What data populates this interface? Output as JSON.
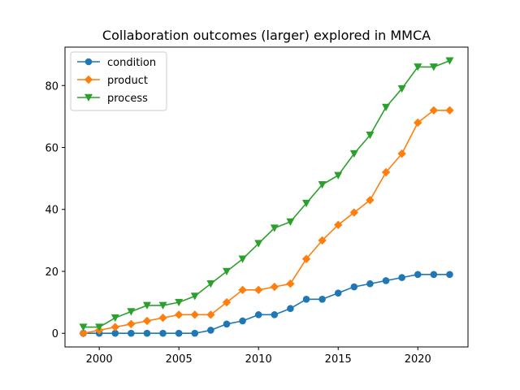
{
  "chart_data": {
    "type": "line",
    "title": "Collaboration outcomes (larger) explored in MMCA",
    "xlabel": "",
    "ylabel": "",
    "xlim": [
      1997.85,
      2023.15
    ],
    "ylim": [
      -4.4,
      92.4
    ],
    "x_ticks": [
      2000,
      2005,
      2010,
      2015,
      2020
    ],
    "y_ticks": [
      0,
      20,
      40,
      60,
      80
    ],
    "grid": false,
    "legend_position": "top-left",
    "x": [
      1999,
      2000,
      2001,
      2002,
      2003,
      2004,
      2005,
      2006,
      2007,
      2008,
      2009,
      2010,
      2011,
      2012,
      2013,
      2014,
      2015,
      2016,
      2017,
      2018,
      2019,
      2020,
      2021,
      2022
    ],
    "series": [
      {
        "name": "condition",
        "color": "#1f77b4",
        "marker": "circle",
        "values": [
          0,
          0,
          0,
          0,
          0,
          0,
          0,
          0,
          1,
          3,
          4,
          6,
          6,
          8,
          11,
          11,
          13,
          15,
          16,
          17,
          18,
          19,
          19,
          19
        ]
      },
      {
        "name": "product",
        "color": "#ff7f0e",
        "marker": "diamond",
        "values": [
          0,
          1,
          2,
          3,
          4,
          5,
          6,
          6,
          6,
          10,
          14,
          14,
          15,
          16,
          24,
          30,
          35,
          39,
          43,
          52,
          58,
          68,
          72,
          72
        ]
      },
      {
        "name": "process",
        "color": "#2ca02c",
        "marker": "triangle-down",
        "values": [
          2,
          2,
          5,
          7,
          9,
          9,
          10,
          12,
          16,
          20,
          24,
          29,
          34,
          36,
          42,
          48,
          51,
          58,
          64,
          73,
          79,
          86,
          86,
          88
        ]
      }
    ]
  }
}
